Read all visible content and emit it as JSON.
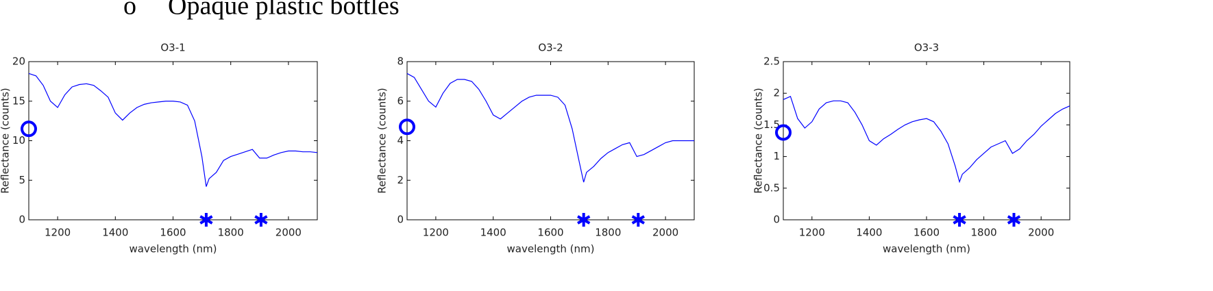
{
  "heading": {
    "bullet": "o",
    "text": "Opaque plastic bottles"
  },
  "chart_data": [
    {
      "type": "line",
      "title": "O3-1",
      "xlabel": "wavelength (nm)",
      "ylabel": "Reflectance (counts)",
      "xlim": [
        1100,
        2100
      ],
      "xticks": [
        1200,
        1400,
        1600,
        1800,
        2000
      ],
      "ylim": [
        0,
        20
      ],
      "yticks": [
        0,
        5,
        10,
        15,
        20
      ],
      "color": "#0000ff",
      "x": [
        1100,
        1125,
        1150,
        1175,
        1200,
        1225,
        1250,
        1275,
        1300,
        1325,
        1350,
        1375,
        1400,
        1425,
        1450,
        1475,
        1500,
        1525,
        1550,
        1575,
        1600,
        1625,
        1650,
        1675,
        1700,
        1715,
        1725,
        1750,
        1775,
        1800,
        1825,
        1850,
        1875,
        1900,
        1925,
        1950,
        1975,
        2000,
        2025,
        2050,
        2075,
        2100
      ],
      "values": [
        18.5,
        18.2,
        17,
        15,
        14.2,
        15.8,
        16.8,
        17.1,
        17.2,
        17.0,
        16.3,
        15.5,
        13.5,
        12.6,
        13.5,
        14.2,
        14.6,
        14.8,
        14.9,
        15.0,
        15.0,
        14.9,
        14.5,
        12.5,
        8,
        4.2,
        5.2,
        6,
        7.5,
        8.0,
        8.3,
        8.6,
        8.9,
        7.8,
        7.8,
        8.2,
        8.5,
        8.7,
        8.7,
        8.6,
        8.6,
        8.5
      ],
      "points": {
        "x": [
          1100,
          1715,
          1905
        ],
        "y": [
          11.5,
          0,
          0
        ],
        "marker": [
          "o",
          "*",
          "*"
        ]
      }
    },
    {
      "type": "line",
      "title": "O3-2",
      "xlabel": "wavelength (nm)",
      "ylabel": "Reflectance (counts)",
      "xlim": [
        1100,
        2100
      ],
      "xticks": [
        1200,
        1400,
        1600,
        1800,
        2000
      ],
      "ylim": [
        0,
        8
      ],
      "yticks": [
        0,
        2,
        4,
        6,
        8
      ],
      "color": "#0000ff",
      "x": [
        1100,
        1125,
        1150,
        1175,
        1200,
        1225,
        1250,
        1275,
        1300,
        1325,
        1350,
        1375,
        1400,
        1425,
        1450,
        1475,
        1500,
        1525,
        1550,
        1575,
        1600,
        1625,
        1650,
        1675,
        1700,
        1715,
        1725,
        1750,
        1775,
        1800,
        1825,
        1850,
        1875,
        1900,
        1925,
        1950,
        1975,
        2000,
        2025,
        2050,
        2075,
        2100
      ],
      "values": [
        7.4,
        7.2,
        6.6,
        6.0,
        5.7,
        6.4,
        6.9,
        7.1,
        7.1,
        7.0,
        6.6,
        6.0,
        5.3,
        5.1,
        5.4,
        5.7,
        6.0,
        6.2,
        6.3,
        6.3,
        6.3,
        6.2,
        5.8,
        4.6,
        2.9,
        1.9,
        2.4,
        2.7,
        3.1,
        3.4,
        3.6,
        3.8,
        3.9,
        3.2,
        3.3,
        3.5,
        3.7,
        3.9,
        4.0,
        4.0,
        4.0,
        4.0
      ],
      "points": {
        "x": [
          1100,
          1715,
          1905
        ],
        "y": [
          4.7,
          0,
          0
        ],
        "marker": [
          "o",
          "*",
          "*"
        ]
      }
    },
    {
      "type": "line",
      "title": "O3-3",
      "xlabel": "wavelength (nm)",
      "ylabel": "Reflectance (counts)",
      "xlim": [
        1100,
        2100
      ],
      "xticks": [
        1200,
        1400,
        1600,
        1800,
        2000
      ],
      "ylim": [
        0,
        2.5
      ],
      "yticks": [
        0,
        0.5,
        1,
        1.5,
        2,
        2.5
      ],
      "color": "#0000ff",
      "x": [
        1100,
        1125,
        1150,
        1175,
        1200,
        1225,
        1250,
        1275,
        1300,
        1325,
        1350,
        1375,
        1400,
        1425,
        1450,
        1475,
        1500,
        1525,
        1550,
        1575,
        1600,
        1625,
        1650,
        1675,
        1700,
        1715,
        1725,
        1750,
        1775,
        1800,
        1825,
        1850,
        1875,
        1900,
        1925,
        1950,
        1975,
        2000,
        2025,
        2050,
        2075,
        2100
      ],
      "values": [
        1.9,
        1.95,
        1.6,
        1.45,
        1.55,
        1.75,
        1.85,
        1.88,
        1.88,
        1.85,
        1.7,
        1.5,
        1.25,
        1.18,
        1.28,
        1.35,
        1.43,
        1.5,
        1.55,
        1.58,
        1.6,
        1.55,
        1.4,
        1.2,
        0.85,
        0.6,
        0.72,
        0.82,
        0.95,
        1.05,
        1.15,
        1.2,
        1.25,
        1.05,
        1.12,
        1.25,
        1.35,
        1.48,
        1.58,
        1.68,
        1.75,
        1.8
      ],
      "points": {
        "x": [
          1100,
          1715,
          1905
        ],
        "y": [
          1.38,
          0,
          0
        ],
        "marker": [
          "o",
          "*",
          "*"
        ]
      }
    }
  ]
}
